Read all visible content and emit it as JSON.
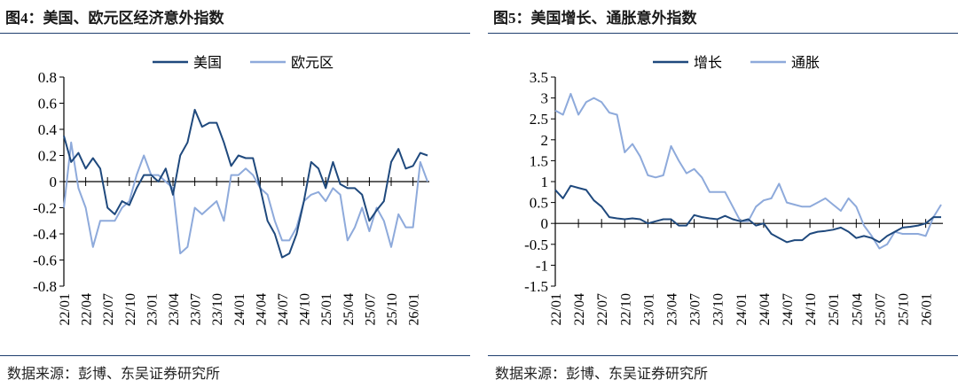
{
  "colors": {
    "dark_blue": "#1f497d",
    "light_blue": "#8eaadb",
    "rule": "#1f3f6e"
  },
  "chart_data": [
    {
      "type": "line",
      "title": "图4：美国、欧元区经济意外指数",
      "source": "数据来源：彭博、东吴证券研究所",
      "ylim": [
        -0.8,
        0.8
      ],
      "yticks": [
        -0.8,
        -0.6,
        -0.4,
        -0.2,
        0,
        0.2,
        0.4,
        0.6,
        0.8
      ],
      "ytick_labels": [
        "-0.8",
        "-0.6",
        "-0.4",
        "-0.2",
        "0",
        "0.2",
        "0.4",
        "0.6",
        "0.8"
      ],
      "xtick_labels": [
        "22/01",
        "22/04",
        "22/07",
        "22/10",
        "23/01",
        "23/04",
        "23/07",
        "23/10",
        "24/01",
        "24/04",
        "24/07",
        "24/10",
        "25/01",
        "25/04",
        "25/07",
        "25/10",
        "26/01"
      ],
      "legend_position": "top-center",
      "grid": false,
      "x": [
        "22/01",
        "22/02",
        "22/03",
        "22/04",
        "22/05",
        "22/06",
        "22/07",
        "22/08",
        "22/09",
        "22/10",
        "22/11",
        "22/12",
        "23/01",
        "23/02",
        "23/03",
        "23/04",
        "23/05",
        "23/06",
        "23/07",
        "23/08",
        "23/09",
        "23/10",
        "23/11",
        "23/12",
        "24/01",
        "24/02",
        "24/03",
        "24/04",
        "24/05",
        "24/06",
        "24/07",
        "24/08",
        "24/09",
        "24/10",
        "24/11",
        "24/12",
        "25/01",
        "25/02",
        "25/03",
        "25/04",
        "25/05",
        "25/06",
        "25/07",
        "25/08",
        "25/09",
        "25/10",
        "25/11",
        "25/12",
        "26/01",
        "26/02",
        "26/03"
      ],
      "series": [
        {
          "name": "美国",
          "color": "#1f497d",
          "values": [
            0.35,
            0.15,
            0.22,
            0.1,
            0.18,
            0.1,
            -0.2,
            -0.25,
            -0.15,
            -0.18,
            -0.05,
            0.05,
            0.05,
            0.0,
            0.1,
            -0.1,
            0.2,
            0.3,
            0.55,
            0.42,
            0.45,
            0.45,
            0.3,
            0.12,
            0.2,
            0.18,
            0.18,
            -0.05,
            -0.3,
            -0.4,
            -0.58,
            -0.55,
            -0.4,
            -0.15,
            0.15,
            0.1,
            -0.05,
            0.15,
            -0.02,
            -0.05,
            -0.05,
            -0.1,
            -0.3,
            -0.22,
            -0.15,
            0.15,
            0.25,
            0.1,
            0.12,
            0.22,
            0.2
          ]
        },
        {
          "name": "欧元区",
          "color": "#8eaadb",
          "values": [
            -0.2,
            0.3,
            -0.05,
            -0.2,
            -0.5,
            -0.3,
            -0.3,
            -0.3,
            -0.2,
            -0.15,
            0.05,
            0.2,
            0.05,
            0.05,
            0.0,
            -0.05,
            -0.55,
            -0.5,
            -0.2,
            -0.25,
            -0.2,
            -0.15,
            -0.3,
            0.05,
            0.05,
            0.1,
            0.05,
            -0.05,
            -0.1,
            -0.3,
            -0.45,
            -0.45,
            -0.35,
            -0.15,
            -0.1,
            -0.08,
            -0.15,
            -0.05,
            -0.1,
            -0.45,
            -0.35,
            -0.2,
            -0.38,
            -0.2,
            -0.3,
            -0.5,
            -0.25,
            -0.35,
            -0.35,
            0.15,
            0.0
          ]
        }
      ]
    },
    {
      "type": "line",
      "title": "图5：美国增长、通胀意外指数",
      "source": "数据来源：彭博、东吴证券研究所",
      "ylim": [
        -1.5,
        3.5
      ],
      "yticks": [
        -1.5,
        -1,
        -0.5,
        0,
        0.5,
        1,
        1.5,
        2,
        2.5,
        3,
        3.5
      ],
      "ytick_labels": [
        "-1.5",
        "-1",
        "-0.5",
        "0",
        "0.5",
        "1",
        "1.5",
        "2",
        "2.5",
        "3",
        "3.5"
      ],
      "xtick_labels": [
        "22/01",
        "22/04",
        "22/07",
        "22/10",
        "23/01",
        "23/04",
        "23/07",
        "23/10",
        "24/01",
        "24/04",
        "24/07",
        "24/10",
        "25/01",
        "25/04",
        "25/07",
        "25/10",
        "26/01"
      ],
      "legend_position": "top-center",
      "grid": false,
      "x": [
        "22/01",
        "22/02",
        "22/03",
        "22/04",
        "22/05",
        "22/06",
        "22/07",
        "22/08",
        "22/09",
        "22/10",
        "22/11",
        "22/12",
        "23/01",
        "23/02",
        "23/03",
        "23/04",
        "23/05",
        "23/06",
        "23/07",
        "23/08",
        "23/09",
        "23/10",
        "23/11",
        "23/12",
        "24/01",
        "24/02",
        "24/03",
        "24/04",
        "24/05",
        "24/06",
        "24/07",
        "24/08",
        "24/09",
        "24/10",
        "24/11",
        "24/12",
        "25/01",
        "25/02",
        "25/03",
        "25/04",
        "25/05",
        "25/06",
        "25/07",
        "25/08",
        "25/09",
        "25/10",
        "25/11",
        "25/12",
        "26/01",
        "26/02",
        "26/03"
      ],
      "series": [
        {
          "name": "增长",
          "color": "#1f497d",
          "values": [
            0.8,
            0.6,
            0.9,
            0.85,
            0.8,
            0.55,
            0.4,
            0.15,
            0.12,
            0.1,
            0.12,
            0.1,
            0.0,
            0.05,
            0.1,
            0.1,
            -0.05,
            -0.05,
            0.2,
            0.15,
            0.12,
            0.1,
            0.18,
            0.1,
            0.05,
            0.1,
            -0.05,
            0.0,
            -0.25,
            -0.35,
            -0.45,
            -0.4,
            -0.4,
            -0.25,
            -0.2,
            -0.18,
            -0.15,
            -0.1,
            -0.2,
            -0.35,
            -0.3,
            -0.35,
            -0.45,
            -0.3,
            -0.2,
            -0.1,
            -0.08,
            -0.05,
            0.0,
            0.15,
            0.15
          ]
        },
        {
          "name": "通胀",
          "color": "#8eaadb",
          "values": [
            2.7,
            2.6,
            3.1,
            2.6,
            2.9,
            3.0,
            2.9,
            2.65,
            2.6,
            1.7,
            1.9,
            1.6,
            1.15,
            1.1,
            1.15,
            1.85,
            1.5,
            1.2,
            1.3,
            1.1,
            0.75,
            0.75,
            0.75,
            0.4,
            0.05,
            0.05,
            0.4,
            0.55,
            0.6,
            0.95,
            0.5,
            0.45,
            0.4,
            0.4,
            0.5,
            0.6,
            0.45,
            0.3,
            0.6,
            0.4,
            -0.05,
            -0.3,
            -0.6,
            -0.5,
            -0.2,
            -0.25,
            -0.25,
            -0.25,
            -0.3,
            0.15,
            0.45
          ]
        }
      ]
    }
  ]
}
